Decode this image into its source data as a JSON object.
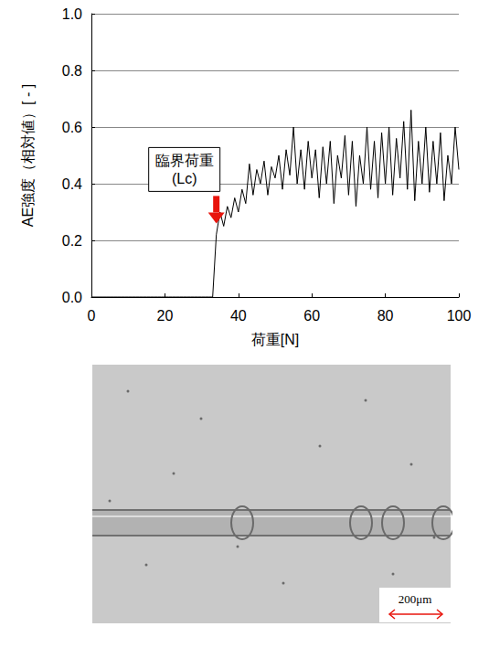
{
  "chart_data": {
    "type": "line",
    "x": [
      0,
      1,
      2,
      3,
      4,
      5,
      6,
      7,
      8,
      9,
      10,
      11,
      12,
      13,
      14,
      15,
      16,
      17,
      18,
      19,
      20,
      21,
      22,
      23,
      24,
      25,
      26,
      27,
      28,
      29,
      30,
      31,
      32,
      33,
      34,
      35,
      36,
      37,
      38,
      39,
      40,
      41,
      42,
      43,
      44,
      45,
      46,
      47,
      48,
      49,
      50,
      51,
      52,
      53,
      54,
      55,
      56,
      57,
      58,
      59,
      60,
      61,
      62,
      63,
      64,
      65,
      66,
      67,
      68,
      69,
      70,
      71,
      72,
      73,
      74,
      75,
      76,
      77,
      78,
      79,
      80,
      81,
      82,
      83,
      84,
      85,
      86,
      87,
      88,
      89,
      90,
      91,
      92,
      93,
      94,
      95,
      96,
      97,
      98,
      99,
      100
    ],
    "values": [
      0,
      0,
      0,
      0,
      0,
      0,
      0,
      0,
      0,
      0,
      0,
      0,
      0,
      0,
      0,
      0,
      0,
      0,
      0,
      0,
      0,
      0,
      0,
      0,
      0,
      0,
      0,
      0,
      0,
      0,
      0,
      0,
      0,
      0,
      0.22,
      0.3,
      0.25,
      0.32,
      0.28,
      0.35,
      0.3,
      0.38,
      0.33,
      0.47,
      0.36,
      0.45,
      0.4,
      0.48,
      0.36,
      0.46,
      0.42,
      0.5,
      0.38,
      0.52,
      0.43,
      0.6,
      0.4,
      0.52,
      0.38,
      0.55,
      0.42,
      0.52,
      0.35,
      0.53,
      0.4,
      0.55,
      0.33,
      0.5,
      0.42,
      0.57,
      0.36,
      0.55,
      0.32,
      0.5,
      0.4,
      0.6,
      0.38,
      0.55,
      0.35,
      0.58,
      0.4,
      0.6,
      0.36,
      0.56,
      0.42,
      0.62,
      0.38,
      0.66,
      0.34,
      0.55,
      0.4,
      0.6,
      0.37,
      0.55,
      0.4,
      0.58,
      0.34,
      0.5,
      0.4,
      0.6,
      0.45
    ],
    "color": "#000000",
    "xlabel": "荷重[N]",
    "ylabel": "AE強度（相対値）[ - ]",
    "xlim": [
      0,
      100
    ],
    "xticks": [
      0,
      20,
      40,
      60,
      80,
      100
    ],
    "ylim": [
      0,
      1
    ],
    "yticks": [
      {
        "value": 0,
        "label": "0.0"
      },
      {
        "value": 0.2,
        "label": "0.2"
      },
      {
        "value": 0.4,
        "label": "0.4"
      },
      {
        "value": 0.6,
        "label": "0.6"
      },
      {
        "value": 0.8,
        "label": "0.8"
      },
      {
        "value": 1,
        "label": "1.0"
      }
    ],
    "grid": true,
    "annotation": {
      "text": "臨界荷重\n(Lc)",
      "x": 34,
      "y": 0.26
    }
  },
  "image": {
    "scale_bar": "200μm"
  }
}
